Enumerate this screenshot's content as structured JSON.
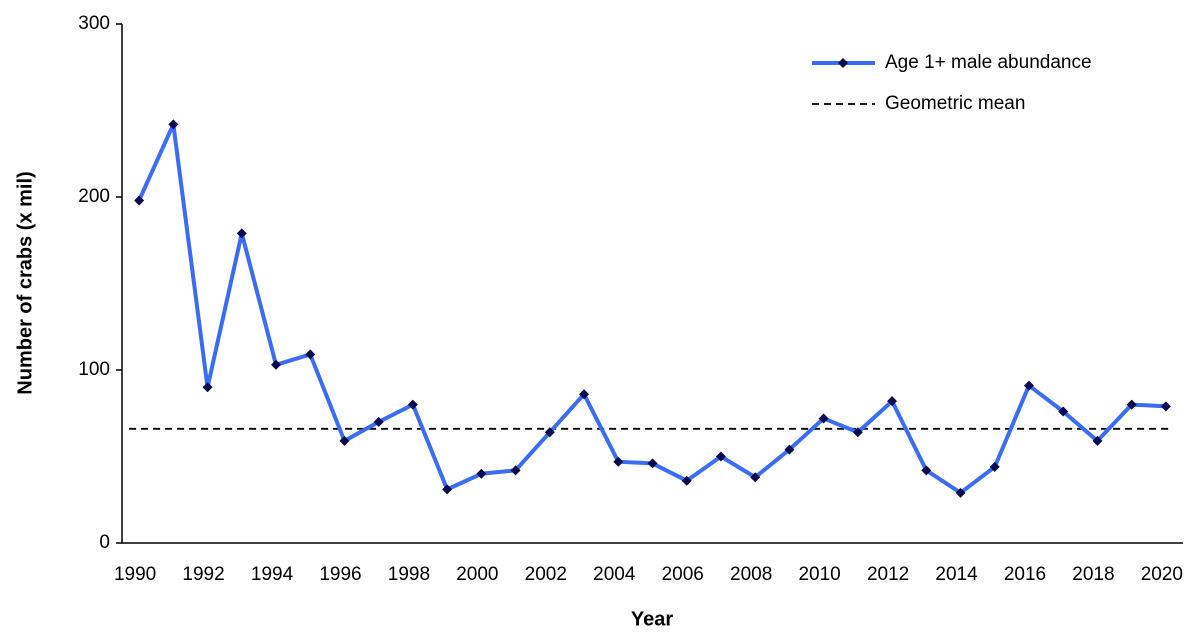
{
  "chart_data": {
    "type": "line",
    "x_label": "Year",
    "y_label": "Number of crabs (x mil)",
    "categories": [
      "1990",
      null,
      "1992",
      null,
      "1994",
      null,
      "1996",
      null,
      "1998",
      null,
      "2000",
      null,
      "2002",
      null,
      "2004",
      null,
      "2006",
      null,
      "2008",
      null,
      "2010",
      null,
      "2012",
      null,
      "2014",
      null,
      "2016",
      null,
      "2018",
      null,
      "2020"
    ],
    "series": [
      {
        "name": "Age 1+ male abundance",
        "color": "#3a6cf4",
        "marker_color": "#0a0a50",
        "values": [
          198,
          242,
          90,
          179,
          103,
          109,
          59,
          70,
          80,
          31,
          40,
          42,
          64,
          86,
          47,
          46,
          36,
          50,
          38,
          54,
          72,
          64,
          82,
          42,
          29,
          44,
          91,
          76,
          59,
          80,
          79
        ]
      }
    ],
    "reference_lines": [
      {
        "name": "Geometric mean",
        "value": 66,
        "color": "#000000",
        "dashed": true
      }
    ],
    "ylim": [
      0,
      300
    ],
    "yticks": [
      0,
      100,
      200,
      300
    ],
    "legend": "top-right"
  }
}
